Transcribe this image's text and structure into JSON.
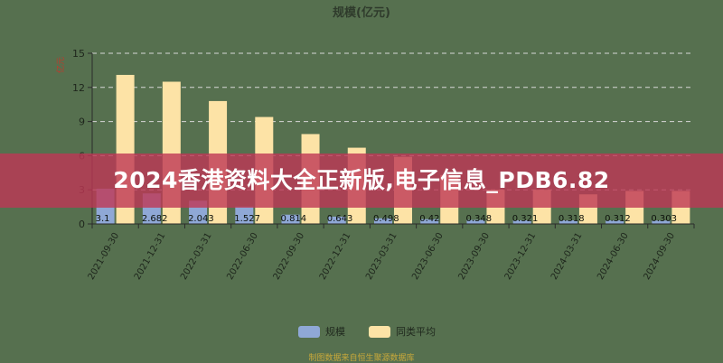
{
  "chart_data": {
    "type": "bar",
    "title": "规模(亿元)",
    "ylabel": "亿元",
    "ylim": [
      0,
      15
    ],
    "yticks": [
      0,
      3,
      6,
      9,
      12,
      15
    ],
    "grid": true,
    "legend_position": "bottom",
    "categories": [
      "2021-09-30",
      "2021-12-31",
      "2022-03-31",
      "2022-06-30",
      "2022-09-30",
      "2022-12-31",
      "2023-03-31",
      "2023-06-30",
      "2023-09-30",
      "2023-12-31",
      "2024-03-31",
      "2024-06-30",
      "2024-09-30"
    ],
    "series": [
      {
        "name": "规模",
        "color": "#8fa8d6",
        "values": [
          3.1,
          2.682,
          2.043,
          1.527,
          0.814,
          0.643,
          0.498,
          0.42,
          0.348,
          0.321,
          0.318,
          0.312,
          0.303
        ],
        "labels": [
          "3.1",
          "2.682",
          "2.043",
          "1.527",
          "0.814",
          "0.643",
          "0.498",
          "0.42",
          "0.348",
          "0.321",
          "0.318",
          "0.312",
          "0.303"
        ]
      },
      {
        "name": "同类平均",
        "color": "#fde3a6",
        "values": [
          13.1,
          12.5,
          10.8,
          9.4,
          7.9,
          6.7,
          5.9,
          4.3,
          3.0,
          3.0,
          2.6,
          2.9,
          2.9
        ]
      }
    ]
  },
  "banner": {
    "text": "2024香港资料大全正新版,电子信息_PDB6.82"
  },
  "footer": {
    "text": "制图数据来自恒生聚源数据库"
  }
}
